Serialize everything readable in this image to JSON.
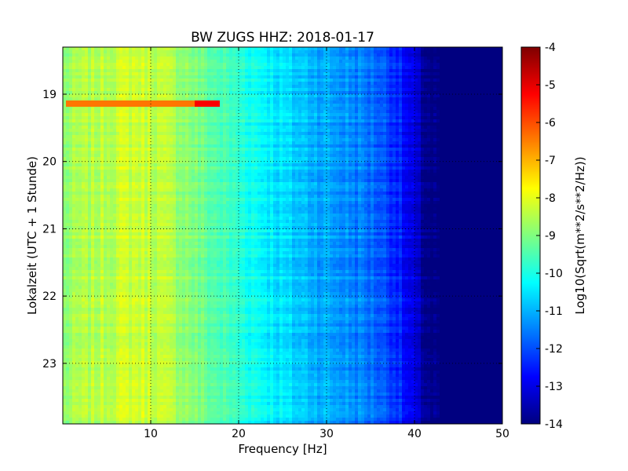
{
  "chart_data": {
    "type": "heatmap",
    "title": "BW ZUGS HHZ: 2018-01-17",
    "xlabel": "Frequency [Hz]",
    "ylabel": "Lokalzeit (UTC + 1 Stunde)",
    "colorbar_label": "Log10(Sqrt(m**2/s**2/Hz))",
    "xlim": [
      0,
      50
    ],
    "ylim": [
      18.3,
      23.9
    ],
    "y_inverted": true,
    "x_ticks": [
      "10",
      "20",
      "30",
      "40",
      "50"
    ],
    "x_tick_values": [
      10,
      20,
      30,
      40,
      50
    ],
    "y_ticks": [
      "19",
      "20",
      "21",
      "22",
      "23"
    ],
    "y_tick_values": [
      19,
      20,
      21,
      22,
      23
    ],
    "colorbar_range": [
      -14,
      -4
    ],
    "colorbar_ticks": [
      "-4",
      "-5",
      "-6",
      "-7",
      "-8",
      "-9",
      "-10",
      "-11",
      "-12",
      "-13",
      "-14"
    ],
    "colorbar_tick_values": [
      -4,
      -5,
      -6,
      -7,
      -8,
      -9,
      -10,
      -11,
      -12,
      -13,
      -14
    ],
    "colormap": "jet",
    "grid": true,
    "frequency_profile": {
      "freq_hz": [
        0,
        2,
        5,
        8,
        10,
        12,
        14,
        16,
        18,
        20,
        22,
        24,
        26,
        28,
        30,
        32,
        34,
        36,
        38,
        39,
        40,
        41,
        42,
        44,
        50
      ],
      "log10_psd": [
        -8.9,
        -8.6,
        -8.4,
        -8.2,
        -8.3,
        -8.5,
        -8.8,
        -9.2,
        -9.5,
        -9.8,
        -10.1,
        -10.4,
        -10.7,
        -10.9,
        -11.1,
        -11.3,
        -11.5,
        -11.8,
        -12.3,
        -12.8,
        -13.2,
        -13.7,
        -14,
        -14,
        -14
      ]
    },
    "annotations": [
      {
        "label": "high-amplitude event",
        "time": 19.15,
        "freq_range_hz": [
          0.5,
          18
        ],
        "log10_psd": -6.4
      }
    ]
  }
}
